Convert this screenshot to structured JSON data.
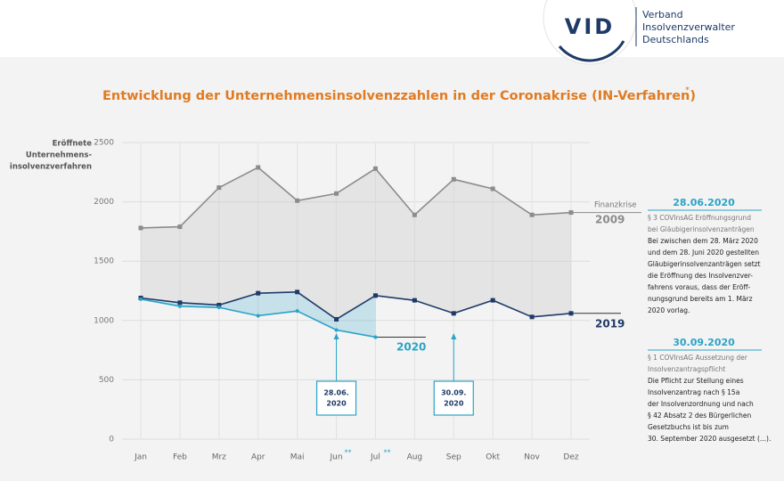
{
  "header": {
    "logo": "VID",
    "org_lines": [
      "Verband",
      "Insolvenzverwalter",
      "Deutschlands"
    ]
  },
  "chart_data": {
    "type": "line",
    "title": "Entwicklung der Unternehmensinsolvenzzahlen in der Coronakrise (IN-Verfahren)",
    "title_note": "*",
    "y_label_lines": [
      "Eröffnete",
      "Unternehmens-",
      "insolvenzverfahren"
    ],
    "categories": [
      "Jan",
      "Feb",
      "Mrz",
      "Apr",
      "Mai",
      "Jun",
      "Jul",
      "Aug",
      "Sep",
      "Okt",
      "Nov",
      "Dez"
    ],
    "category_notes": [
      null,
      null,
      null,
      null,
      null,
      "**",
      "**",
      null,
      null,
      null,
      null,
      null
    ],
    "ylim": [
      0,
      2500
    ],
    "yticks": [
      0,
      500,
      1000,
      1500,
      2000,
      2500
    ],
    "grid": true,
    "series": [
      {
        "name": "2009",
        "note": "Finanzkrise",
        "color": "#8c8c8c",
        "values": [
          1780,
          1790,
          2120,
          2290,
          2010,
          2070,
          2280,
          1890,
          2190,
          2110,
          1890,
          1910
        ]
      },
      {
        "name": "2019",
        "color": "#1f3a68",
        "values": [
          1190,
          1150,
          1130,
          1230,
          1240,
          1010,
          1210,
          1170,
          1060,
          1170,
          1030,
          1060
        ]
      },
      {
        "name": "2020",
        "color": "#2aa3c8",
        "values": [
          1180,
          1120,
          1110,
          1040,
          1080,
          920,
          860,
          null,
          null,
          null,
          null,
          null
        ]
      }
    ],
    "annotations": [
      {
        "category": "Jun",
        "lines": [
          "28.06.",
          "2020"
        ]
      },
      {
        "category": "Sep",
        "lines": [
          "30.09.",
          "2020"
        ]
      }
    ]
  },
  "side_notes": [
    {
      "title": "28.06.2020",
      "subtitle": [
        "§ 3 COVInsAG Eröffnungsgrund",
        "bei Gläubigerinsolvenzanträgen"
      ],
      "body": [
        "Bei zwischen dem 28. März 2020",
        "und dem 28. Juni 2020 gestellten",
        "Gläubigerinsolvenzanträgen setzt",
        "die Eröffnung des Insolvenzver-",
        "fahrens voraus, dass der Eröff-",
        "nungsgrund bereits am 1. März",
        "2020 vorlag."
      ]
    },
    {
      "title": "30.09.2020",
      "subtitle": [
        "§ 1 COVInsAG Aussetzung der",
        "Insolvenzantragspflicht"
      ],
      "body": [
        "Die Pflicht zur Stellung eines",
        "Insolvenzantrag nach § 15a",
        "der Insolvenzordnung und nach",
        "§ 42 Absatz 2 des Bürgerlichen",
        "Gesetzbuchs ist bis zum",
        "30. September 2020 ausgesetzt (...)."
      ]
    }
  ]
}
